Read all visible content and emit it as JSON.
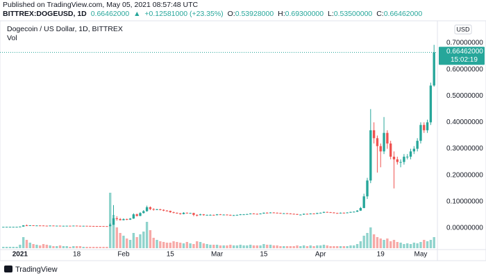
{
  "header": {
    "published": "Published on TradingView.com, May 05, 2021 08:57:48 UTC",
    "symbol": "BITTREX:DOGEUSD, 1D",
    "last": "0.66462000",
    "change": "+0.12581000 (+23.35%)",
    "o_key": "O:",
    "o": "0.53928000",
    "h_key": "H:",
    "h": "0.69300000",
    "l_key": "L:",
    "l": "0.53500000",
    "c_key": "C:",
    "c": "0.66462000"
  },
  "footer": {
    "brand": "TradingView"
  },
  "chart_data": {
    "type": "candlestick",
    "title": "Dogecoin / US Dollar, 1D, BITTREX",
    "volume_label": "Vol",
    "currency": "USD",
    "last_price_label": "0.66462000",
    "countdown": "15:02:19",
    "last_price": 0.66462,
    "up_color": "#26a69a",
    "down_color": "#ef5350",
    "up_volume_color": "#8fd3cc",
    "down_volume_color": "#f7a9a7",
    "grid": false,
    "xlim": [
      -1,
      130
    ],
    "ylim": [
      -0.0865,
      0.7446
    ],
    "yticks": [
      {
        "value": 0.7,
        "label": "0.70000000"
      },
      {
        "value": 0.6,
        "label": "0.60000000"
      },
      {
        "value": 0.5,
        "label": "0.50000000"
      },
      {
        "value": 0.4,
        "label": "0.40000000"
      },
      {
        "value": 0.3,
        "label": "0.30000000"
      },
      {
        "value": 0.2,
        "label": "0.20000000"
      },
      {
        "value": 0.1,
        "label": "0.10000000"
      },
      {
        "value": 0,
        "label": "0.00000000"
      }
    ],
    "xticks": [
      {
        "value": 5,
        "label": "2021"
      },
      {
        "value": 22,
        "label": "18"
      },
      {
        "value": 36,
        "label": "Feb"
      },
      {
        "value": 50,
        "label": "15"
      },
      {
        "value": 64,
        "label": "Mar"
      },
      {
        "value": 78,
        "label": "15"
      },
      {
        "value": 95,
        "label": "Apr"
      },
      {
        "value": 113,
        "label": "19"
      },
      {
        "value": 125,
        "label": "May"
      }
    ],
    "candles": [
      [
        0.0046,
        0.0048,
        0.0045,
        0.0046
      ],
      [
        0.0046,
        0.0048,
        0.0045,
        0.0047
      ],
      [
        0.0047,
        0.0049,
        0.0046,
        0.0047
      ],
      [
        0.0047,
        0.0049,
        0.0046,
        0.0047
      ],
      [
        0.0047,
        0.005,
        0.0046,
        0.0047
      ],
      [
        0.0047,
        0.0059,
        0.0047,
        0.0057
      ],
      [
        0.0057,
        0.011,
        0.0056,
        0.0103
      ],
      [
        0.0103,
        0.0135,
        0.009,
        0.0099
      ],
      [
        0.0099,
        0.011,
        0.0094,
        0.0105
      ],
      [
        0.0105,
        0.0108,
        0.0095,
        0.0099
      ],
      [
        0.0099,
        0.0102,
        0.0092,
        0.0099
      ],
      [
        0.0099,
        0.0101,
        0.0093,
        0.0098
      ],
      [
        0.0098,
        0.0099,
        0.0085,
        0.0091
      ],
      [
        0.0091,
        0.0094,
        0.008,
        0.0087
      ],
      [
        0.0087,
        0.0098,
        0.0086,
        0.0096
      ],
      [
        0.0096,
        0.0097,
        0.0088,
        0.009
      ],
      [
        0.009,
        0.0093,
        0.0088,
        0.0091
      ],
      [
        0.0091,
        0.0092,
        0.0081,
        0.0083
      ],
      [
        0.0083,
        0.0088,
        0.0082,
        0.0087
      ],
      [
        0.0087,
        0.009,
        0.0086,
        0.0089
      ],
      [
        0.0089,
        0.0091,
        0.0086,
        0.0088
      ],
      [
        0.0088,
        0.0095,
        0.0087,
        0.0093
      ],
      [
        0.0093,
        0.0094,
        0.0085,
        0.0087
      ],
      [
        0.0087,
        0.0088,
        0.0078,
        0.0081
      ],
      [
        0.0081,
        0.0087,
        0.008,
        0.0086
      ],
      [
        0.0086,
        0.0087,
        0.0081,
        0.0083
      ],
      [
        0.0083,
        0.0084,
        0.0079,
        0.008
      ],
      [
        0.008,
        0.0082,
        0.0077,
        0.0079
      ],
      [
        0.0079,
        0.008,
        0.0076,
        0.0078
      ],
      [
        0.0078,
        0.0079,
        0.0075,
        0.0076
      ],
      [
        0.0076,
        0.0077,
        0.0073,
        0.0074
      ],
      [
        0.0074,
        0.0076,
        0.0071,
        0.0072
      ],
      [
        0.0072,
        0.018,
        0.0071,
        0.0125
      ],
      [
        0.0125,
        0.087,
        0.0125,
        0.037
      ],
      [
        0.037,
        0.045,
        0.028,
        0.034
      ],
      [
        0.034,
        0.038,
        0.029,
        0.03
      ],
      [
        0.03,
        0.037,
        0.029,
        0.034
      ],
      [
        0.034,
        0.036,
        0.03,
        0.032
      ],
      [
        0.032,
        0.038,
        0.031,
        0.036
      ],
      [
        0.036,
        0.056,
        0.035,
        0.052
      ],
      [
        0.052,
        0.055,
        0.044,
        0.046
      ],
      [
        0.046,
        0.06,
        0.045,
        0.057
      ],
      [
        0.057,
        0.068,
        0.055,
        0.064
      ],
      [
        0.064,
        0.085,
        0.062,
        0.079
      ],
      [
        0.079,
        0.082,
        0.068,
        0.072
      ],
      [
        0.072,
        0.075,
        0.066,
        0.07
      ],
      [
        0.07,
        0.073,
        0.068,
        0.071
      ],
      [
        0.071,
        0.073,
        0.067,
        0.069
      ],
      [
        0.069,
        0.071,
        0.064,
        0.066
      ],
      [
        0.066,
        0.068,
        0.063,
        0.065
      ],
      [
        0.065,
        0.066,
        0.058,
        0.06
      ],
      [
        0.06,
        0.062,
        0.056,
        0.058
      ],
      [
        0.058,
        0.059,
        0.054,
        0.056
      ],
      [
        0.056,
        0.057,
        0.051,
        0.053
      ],
      [
        0.053,
        0.06,
        0.052,
        0.058
      ],
      [
        0.058,
        0.059,
        0.055,
        0.057
      ],
      [
        0.057,
        0.058,
        0.055,
        0.057
      ],
      [
        0.057,
        0.058,
        0.045,
        0.05
      ],
      [
        0.05,
        0.052,
        0.044,
        0.049
      ],
      [
        0.049,
        0.054,
        0.048,
        0.052
      ],
      [
        0.052,
        0.053,
        0.047,
        0.049
      ],
      [
        0.049,
        0.051,
        0.048,
        0.05
      ],
      [
        0.05,
        0.052,
        0.049,
        0.05
      ],
      [
        0.05,
        0.051,
        0.048,
        0.049
      ],
      [
        0.049,
        0.053,
        0.048,
        0.052
      ],
      [
        0.052,
        0.053,
        0.05,
        0.051
      ],
      [
        0.051,
        0.052,
        0.05,
        0.051
      ],
      [
        0.051,
        0.052,
        0.049,
        0.05
      ],
      [
        0.05,
        0.051,
        0.047,
        0.048
      ],
      [
        0.048,
        0.05,
        0.047,
        0.049
      ],
      [
        0.049,
        0.051,
        0.048,
        0.05
      ],
      [
        0.05,
        0.053,
        0.049,
        0.052
      ],
      [
        0.052,
        0.053,
        0.051,
        0.052
      ],
      [
        0.052,
        0.054,
        0.051,
        0.053
      ],
      [
        0.053,
        0.056,
        0.052,
        0.055
      ],
      [
        0.055,
        0.056,
        0.053,
        0.054
      ],
      [
        0.054,
        0.055,
        0.052,
        0.053
      ],
      [
        0.053,
        0.056,
        0.052,
        0.055
      ],
      [
        0.055,
        0.059,
        0.054,
        0.058
      ],
      [
        0.058,
        0.06,
        0.056,
        0.057
      ],
      [
        0.057,
        0.06,
        0.056,
        0.059
      ],
      [
        0.059,
        0.06,
        0.057,
        0.058
      ],
      [
        0.058,
        0.059,
        0.056,
        0.057
      ],
      [
        0.057,
        0.058,
        0.055,
        0.056
      ],
      [
        0.056,
        0.057,
        0.055,
        0.056
      ],
      [
        0.056,
        0.057,
        0.054,
        0.055
      ],
      [
        0.055,
        0.056,
        0.053,
        0.054
      ],
      [
        0.054,
        0.055,
        0.052,
        0.053
      ],
      [
        0.053,
        0.054,
        0.05,
        0.051
      ],
      [
        0.051,
        0.052,
        0.05,
        0.051
      ],
      [
        0.051,
        0.055,
        0.05,
        0.054
      ],
      [
        0.054,
        0.055,
        0.052,
        0.053
      ],
      [
        0.053,
        0.056,
        0.052,
        0.055
      ],
      [
        0.055,
        0.056,
        0.053,
        0.054
      ],
      [
        0.054,
        0.058,
        0.053,
        0.057
      ],
      [
        0.057,
        0.059,
        0.056,
        0.058
      ],
      [
        0.058,
        0.062,
        0.057,
        0.061
      ],
      [
        0.061,
        0.062,
        0.059,
        0.06
      ],
      [
        0.06,
        0.061,
        0.058,
        0.059
      ],
      [
        0.059,
        0.06,
        0.056,
        0.057
      ],
      [
        0.057,
        0.058,
        0.055,
        0.056
      ],
      [
        0.056,
        0.059,
        0.055,
        0.058
      ],
      [
        0.058,
        0.059,
        0.056,
        0.057
      ],
      [
        0.057,
        0.06,
        0.056,
        0.059
      ],
      [
        0.059,
        0.062,
        0.058,
        0.061
      ],
      [
        0.061,
        0.063,
        0.06,
        0.062
      ],
      [
        0.062,
        0.068,
        0.061,
        0.066
      ],
      [
        0.066,
        0.08,
        0.065,
        0.076
      ],
      [
        0.076,
        0.13,
        0.075,
        0.12
      ],
      [
        0.12,
        0.19,
        0.11,
        0.18
      ],
      [
        0.18,
        0.45,
        0.17,
        0.37
      ],
      [
        0.37,
        0.4,
        0.32,
        0.34
      ],
      [
        0.34,
        0.35,
        0.21,
        0.31
      ],
      [
        0.31,
        0.32,
        0.23,
        0.29
      ],
      [
        0.29,
        0.42,
        0.28,
        0.36
      ],
      [
        0.36,
        0.37,
        0.3,
        0.32
      ],
      [
        0.32,
        0.33,
        0.26,
        0.27
      ],
      [
        0.27,
        0.29,
        0.15,
        0.26
      ],
      [
        0.26,
        0.27,
        0.24,
        0.25
      ],
      [
        0.25,
        0.26,
        0.23,
        0.25
      ],
      [
        0.25,
        0.28,
        0.24,
        0.27
      ],
      [
        0.27,
        0.28,
        0.26,
        0.27
      ],
      [
        0.27,
        0.3,
        0.26,
        0.29
      ],
      [
        0.29,
        0.31,
        0.28,
        0.3
      ],
      [
        0.3,
        0.34,
        0.29,
        0.33
      ],
      [
        0.33,
        0.4,
        0.32,
        0.39
      ],
      [
        0.39,
        0.4,
        0.36,
        0.37
      ],
      [
        0.37,
        0.41,
        0.36,
        0.4
      ],
      [
        0.4,
        0.55,
        0.39,
        0.539
      ],
      [
        0.53928,
        0.693,
        0.535,
        0.66462
      ]
    ],
    "volume": [
      2,
      2,
      2,
      2,
      2,
      5,
      16,
      12,
      8,
      6,
      5,
      4,
      6,
      5,
      4,
      3,
      3,
      4,
      3,
      3,
      2,
      3,
      3,
      3,
      2,
      2,
      2,
      2,
      2,
      2,
      2,
      2,
      80,
      48,
      30,
      22,
      18,
      14,
      12,
      22,
      16,
      20,
      24,
      38,
      26,
      15,
      12,
      10,
      9,
      8,
      8,
      10,
      9,
      8,
      7,
      9,
      7,
      6,
      10,
      9,
      7,
      6,
      5,
      5,
      5,
      4,
      4,
      4,
      5,
      4,
      4,
      5,
      4,
      4,
      5,
      4,
      4,
      4,
      6,
      5,
      5,
      4,
      4,
      3,
      3,
      3,
      3,
      3,
      4,
      3,
      4,
      3,
      4,
      3,
      4,
      4,
      5,
      4,
      3,
      3,
      3,
      3,
      3,
      3,
      4,
      4,
      6,
      10,
      18,
      22,
      30,
      20,
      16,
      14,
      12,
      14,
      10,
      12,
      9,
      8,
      6,
      7,
      6,
      8,
      7,
      9,
      12,
      10,
      12,
      16
    ]
  }
}
